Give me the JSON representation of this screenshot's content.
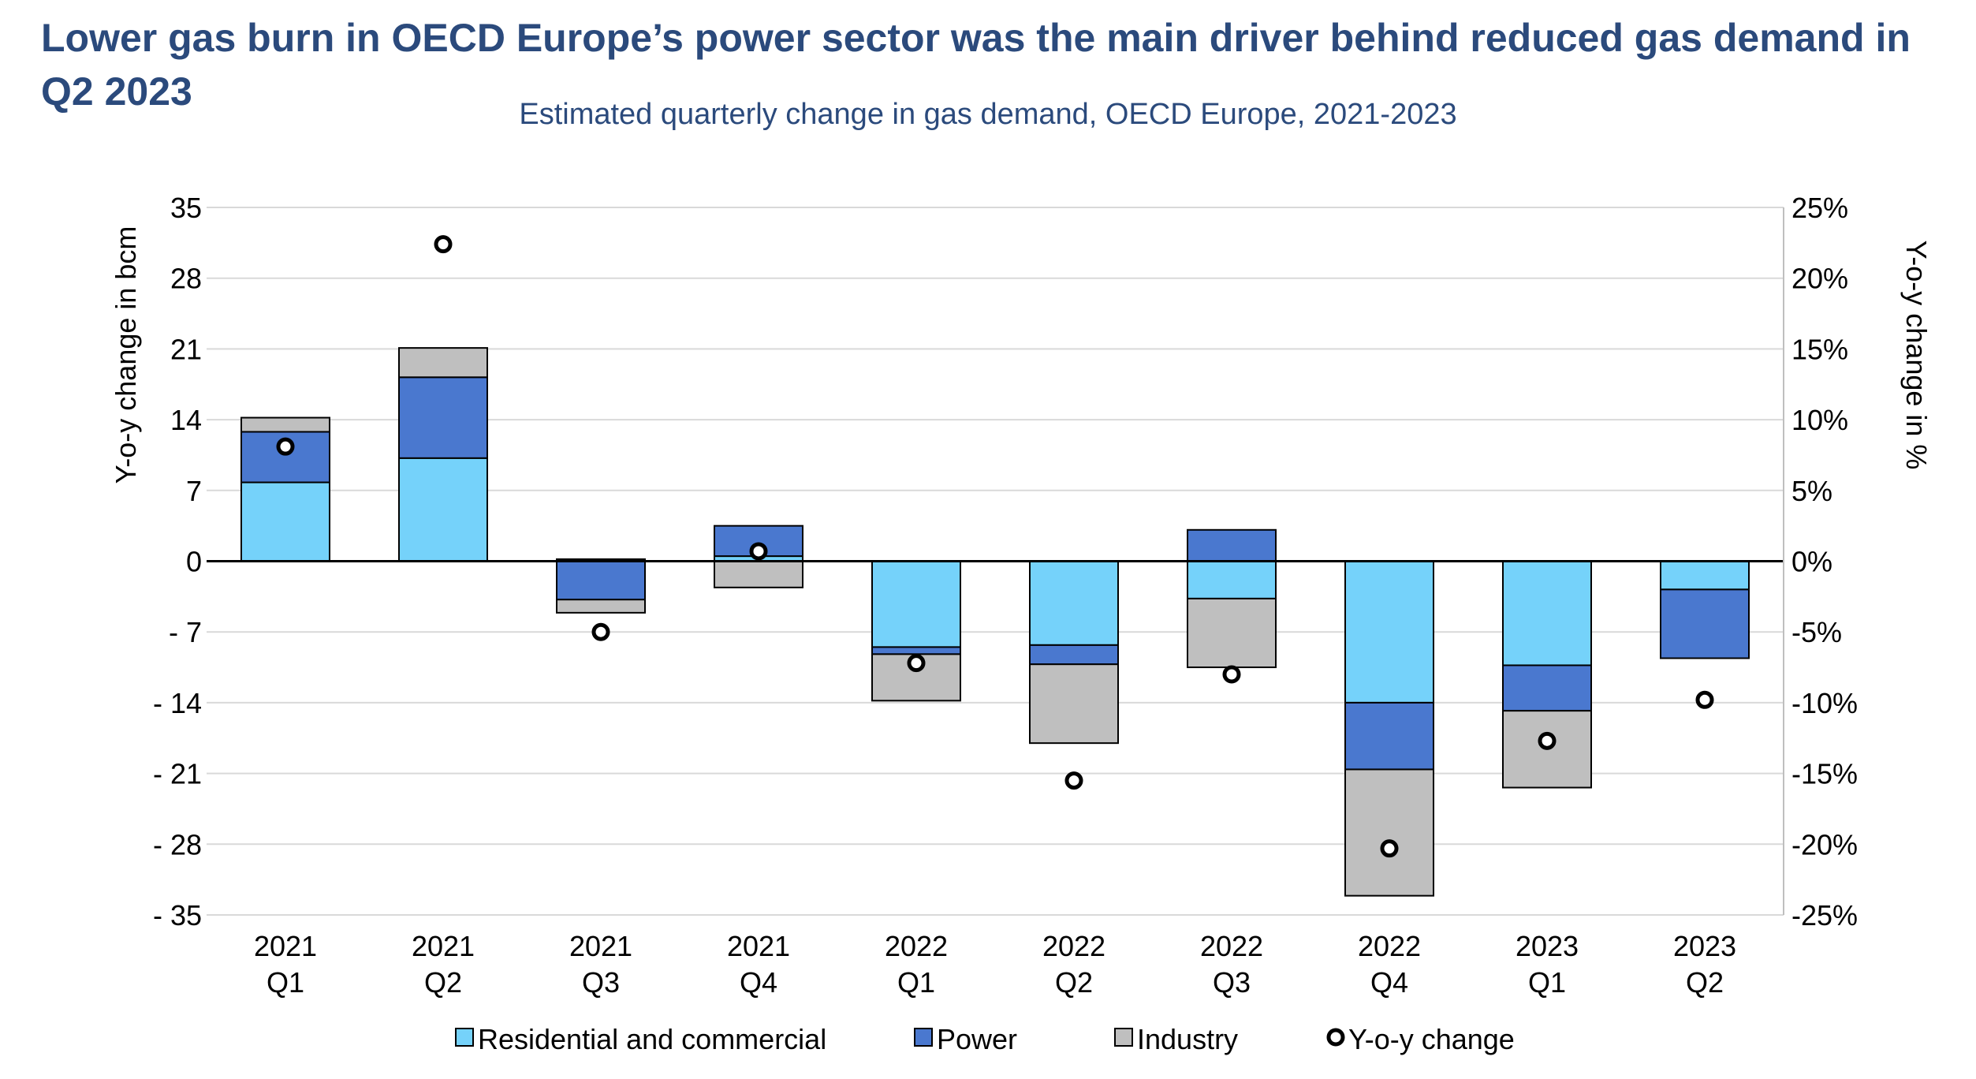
{
  "title": "Lower gas burn in OECD Europe’s power sector was the main driver behind reduced gas demand in Q2 2023",
  "subtitle": "Estimated quarterly change in gas demand, OECD Europe, 2021-2023",
  "chart_data": {
    "type": "bar",
    "stacked": true,
    "categories": [
      {
        "year": "2021",
        "quarter": "Q1"
      },
      {
        "year": "2021",
        "quarter": "Q2"
      },
      {
        "year": "2021",
        "quarter": "Q3"
      },
      {
        "year": "2021",
        "quarter": "Q4"
      },
      {
        "year": "2022",
        "quarter": "Q1"
      },
      {
        "year": "2022",
        "quarter": "Q2"
      },
      {
        "year": "2022",
        "quarter": "Q3"
      },
      {
        "year": "2022",
        "quarter": "Q4"
      },
      {
        "year": "2023",
        "quarter": "Q1"
      },
      {
        "year": "2023",
        "quarter": "Q2"
      }
    ],
    "series": [
      {
        "name": "Residential and commercial",
        "color": "#75d2fa",
        "values": [
          7.8,
          10.2,
          0.2,
          0.5,
          -8.5,
          -8.3,
          -3.7,
          -14.0,
          -10.3,
          -2.8
        ]
      },
      {
        "name": "Power",
        "color": "#4a78cf",
        "values": [
          5.0,
          8.0,
          -3.8,
          3.0,
          -0.7,
          -1.9,
          3.1,
          -6.6,
          -4.5,
          -6.8
        ]
      },
      {
        "name": "Industry",
        "color": "#bfbfbf",
        "values": [
          1.4,
          2.9,
          -1.3,
          -2.6,
          -4.6,
          -7.8,
          -6.8,
          -12.5,
          -7.6,
          0
        ]
      }
    ],
    "yoy_series": {
      "name": "Y-o-y change",
      "values": [
        8.1,
        22.4,
        -5.0,
        0.7,
        -7.2,
        -15.5,
        -8.0,
        -20.3,
        -12.7,
        -9.8
      ]
    },
    "ylabel": "Y-o-y change in bcm",
    "y2label": "Y-o-y change in %",
    "ylim": [
      -35,
      35
    ],
    "y2lim": [
      -25,
      25
    ],
    "yticks": [
      35,
      28,
      21,
      14,
      7,
      0,
      -7,
      -14,
      -21,
      -28,
      -35
    ],
    "yticklabels": [
      "35",
      "28",
      "21",
      "14",
      "7",
      "0",
      "- 7",
      "- 14",
      "- 21",
      "- 28",
      "- 35"
    ],
    "y2ticklabels": [
      "25%",
      "20%",
      "15%",
      "10%",
      "5%",
      "0%",
      "-5%",
      "-10%",
      "-15%",
      "-20%",
      "-25%"
    ],
    "grid": true,
    "legend": "bottom"
  }
}
